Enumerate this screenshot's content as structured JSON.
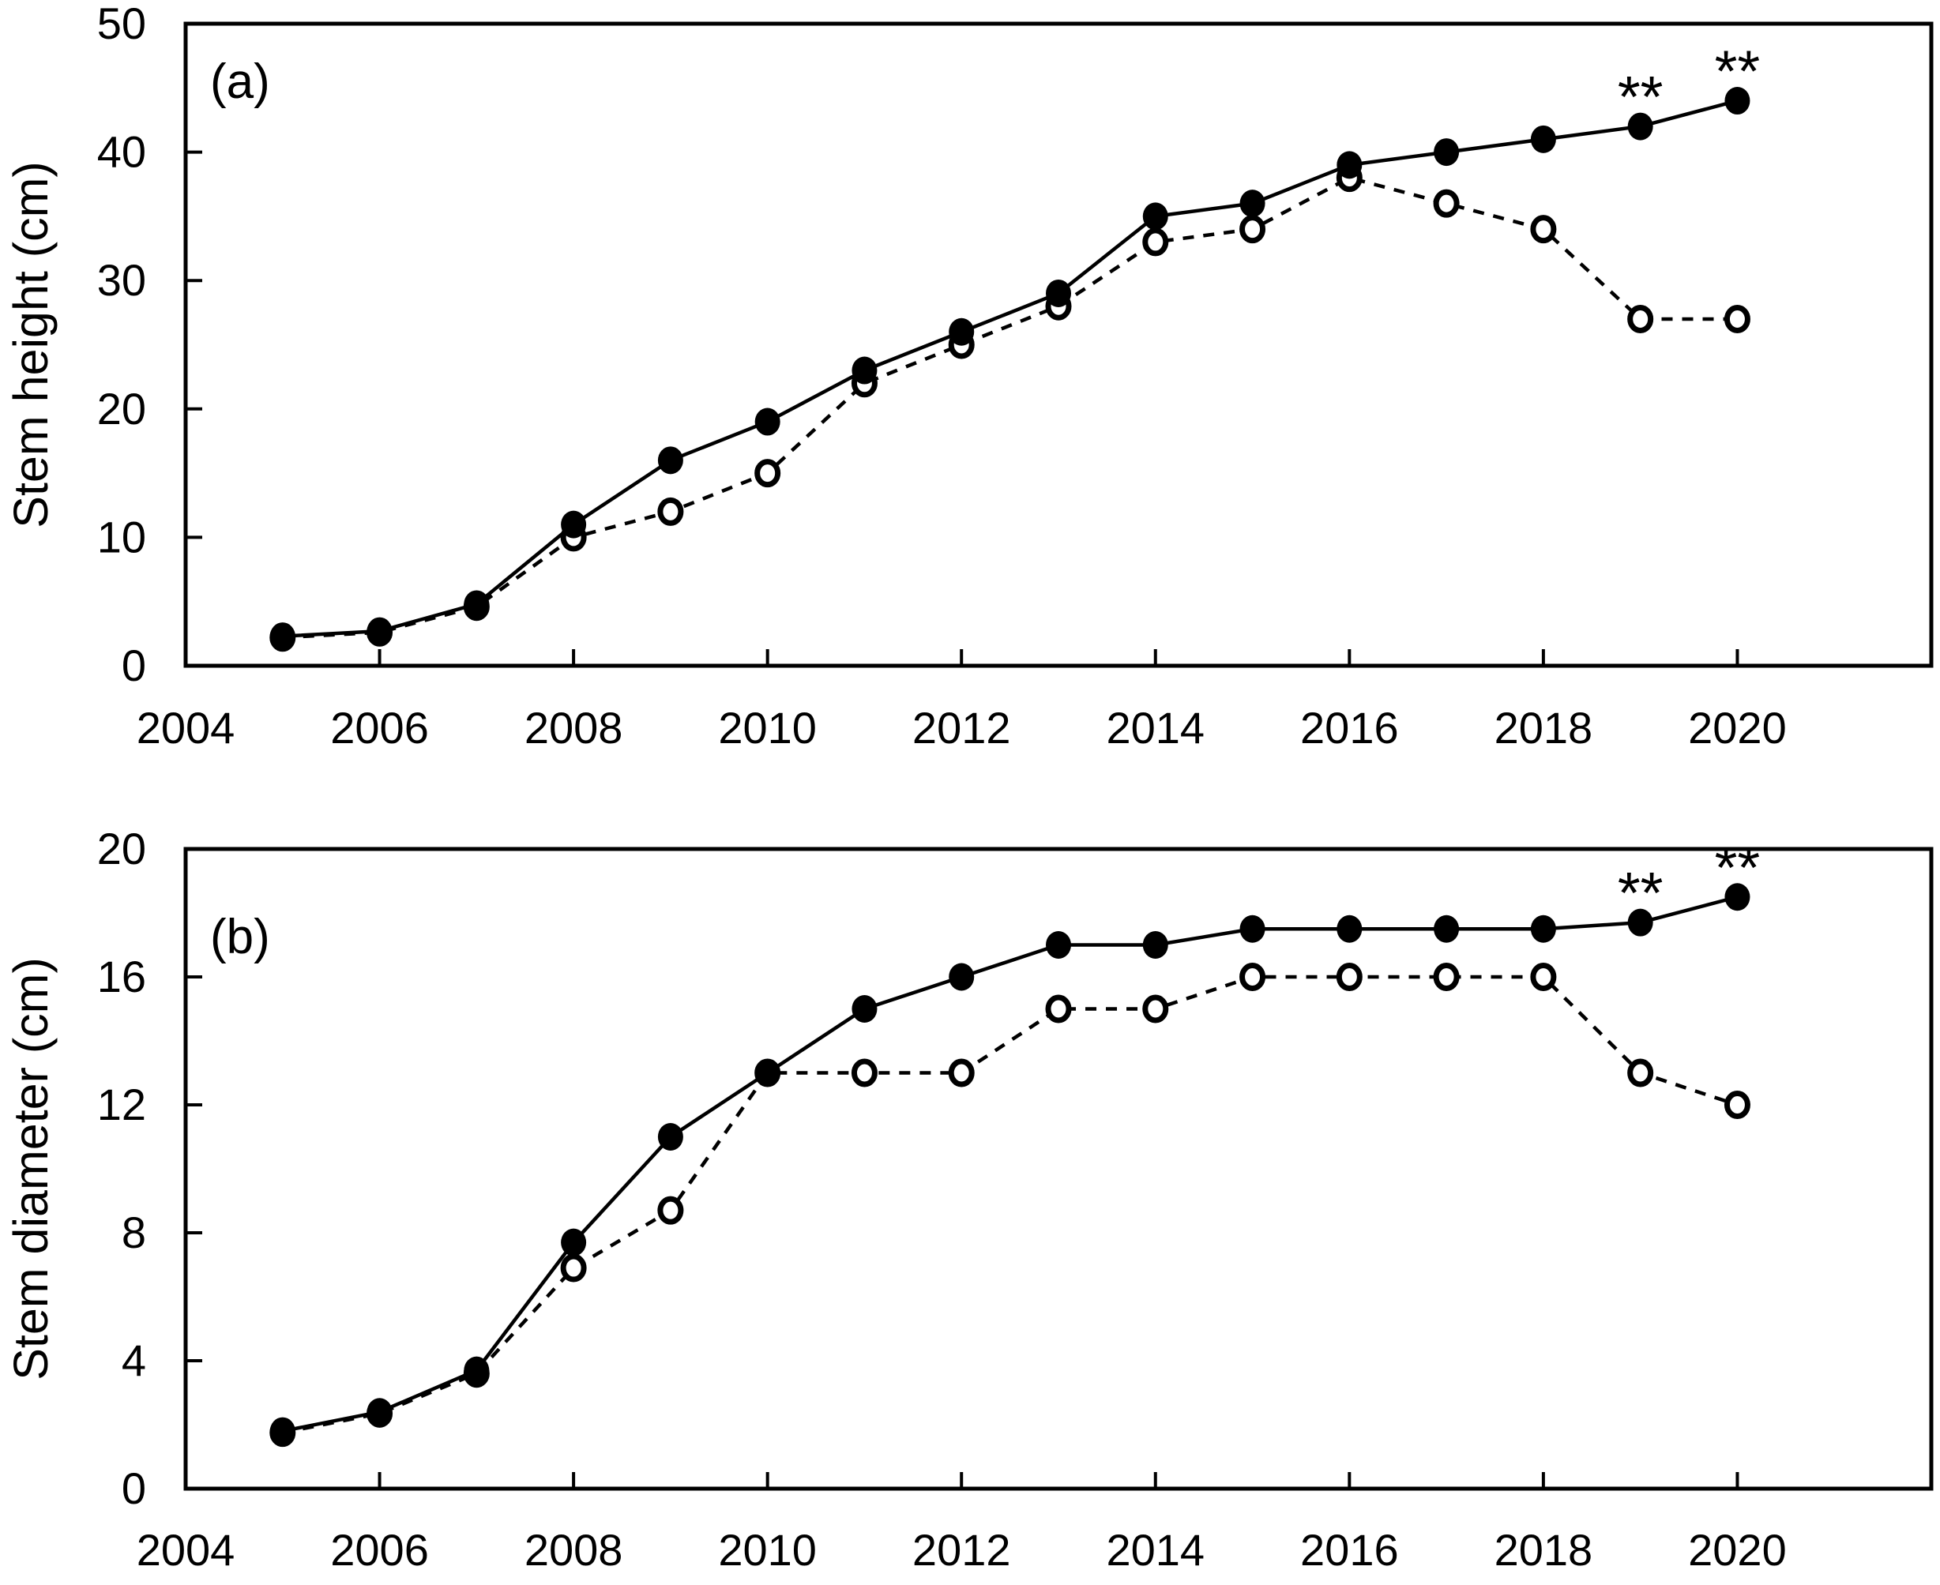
{
  "figure": {
    "background_color": "#ffffff",
    "ink_color": "#000000",
    "description": "Two-panel line chart of stem growth over years"
  },
  "chart_data": [
    {
      "type": "line",
      "panel_label": "(a)",
      "title": "",
      "xlabel": "",
      "ylabel": "Stem height (cm)",
      "ylim": [
        0,
        50
      ],
      "yticks": [
        0,
        10,
        20,
        30,
        40,
        50
      ],
      "xlim": [
        2004,
        2022
      ],
      "xticks": [
        2004,
        2006,
        2008,
        2010,
        2012,
        2014,
        2016,
        2018,
        2020
      ],
      "grid": false,
      "legend_position": "none",
      "x": [
        2005,
        2006,
        2007,
        2008,
        2009,
        2010,
        2011,
        2012,
        2013,
        2014,
        2015,
        2016,
        2017,
        2018,
        2019,
        2020
      ],
      "series": [
        {
          "name": "filled-circle-solid-line",
          "marker": "filled-circle",
          "line_style": "solid",
          "values": [
            2.3,
            2.7,
            4.8,
            11,
            16,
            19,
            23,
            26,
            29,
            35,
            36,
            39,
            40,
            41,
            42,
            44
          ]
        },
        {
          "name": "open-circle-dashed-line",
          "marker": "open-circle",
          "line_style": "dashed",
          "values": [
            2.2,
            2.6,
            4.6,
            10,
            12,
            15,
            22,
            25,
            28,
            33,
            34,
            38,
            36,
            34,
            27,
            27
          ]
        }
      ],
      "annotations": [
        {
          "text": "**",
          "x": 2019,
          "y": 42
        },
        {
          "text": "**",
          "x": 2020,
          "y": 44
        }
      ]
    },
    {
      "type": "line",
      "panel_label": "(b)",
      "title": "",
      "xlabel": "",
      "ylabel": "Stem diameter (cm)",
      "ylim": [
        0,
        20
      ],
      "yticks": [
        0,
        4,
        8,
        12,
        16,
        20
      ],
      "xlim": [
        2004,
        2022
      ],
      "xticks": [
        2004,
        2006,
        2008,
        2010,
        2012,
        2014,
        2016,
        2018,
        2020
      ],
      "grid": false,
      "legend_position": "none",
      "x": [
        2005,
        2006,
        2007,
        2008,
        2009,
        2010,
        2011,
        2012,
        2013,
        2014,
        2015,
        2016,
        2017,
        2018,
        2019,
        2020
      ],
      "series": [
        {
          "name": "filled-circle-solid-line",
          "marker": "filled-circle",
          "line_style": "solid",
          "values": [
            1.8,
            2.4,
            3.7,
            7.7,
            11,
            13,
            15,
            16,
            17,
            17,
            17.5,
            17.5,
            17.5,
            17.5,
            17.7,
            18.5
          ]
        },
        {
          "name": "open-circle-dashed-line",
          "marker": "open-circle",
          "line_style": "dashed",
          "values": [
            1.75,
            2.35,
            3.6,
            6.9,
            8.7,
            13,
            13,
            13,
            15,
            15,
            16,
            16,
            16,
            16,
            13,
            12
          ]
        }
      ],
      "annotations": [
        {
          "text": "**",
          "x": 2019,
          "y": 17.7
        },
        {
          "text": "**",
          "x": 2020,
          "y": 18.5
        }
      ]
    }
  ]
}
